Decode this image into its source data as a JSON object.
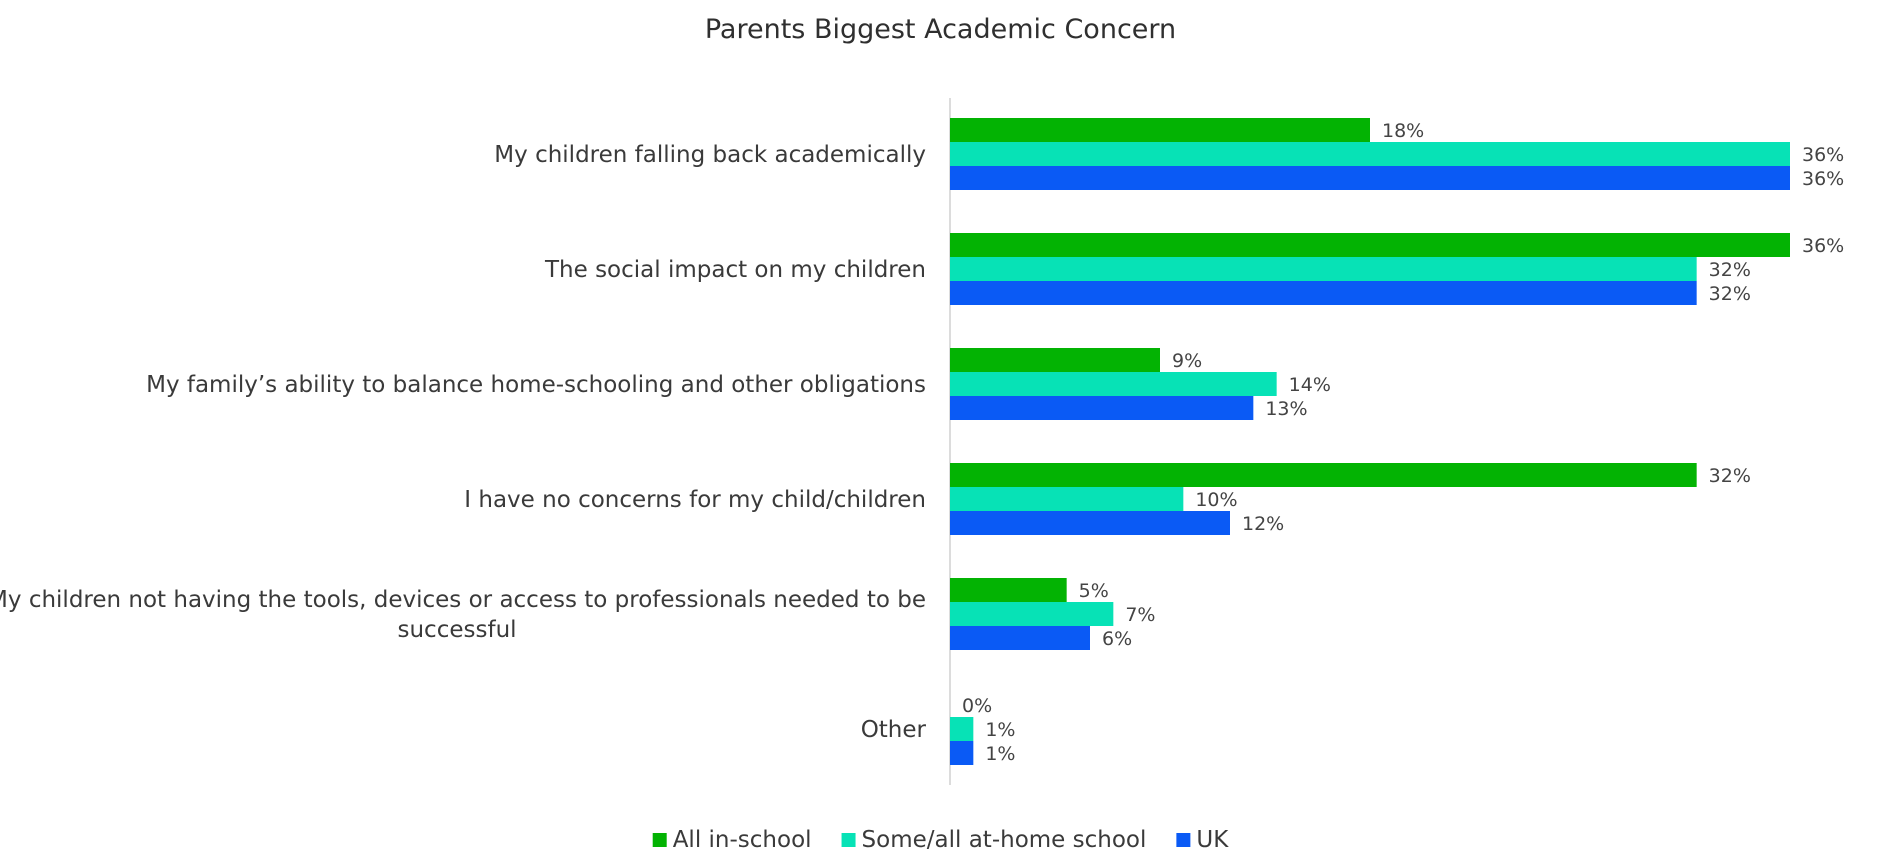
{
  "chart_data": {
    "type": "bar",
    "orientation": "horizontal",
    "title": "Parents Biggest Academic Concern",
    "categories": [
      [
        "My children falling back academically"
      ],
      [
        "The social impact on my children"
      ],
      [
        "My family’s ability to balance home-schooling and other obligations"
      ],
      [
        "I have no concerns for my child/children"
      ],
      [
        "My children not having the tools, devices or access to professionals needed to be",
        "successful"
      ],
      [
        "Other"
      ]
    ],
    "series": [
      {
        "name": "All in-school",
        "color": "#03b303",
        "values": [
          18,
          36,
          9,
          32,
          5,
          0
        ],
        "labels": [
          "18%",
          "36%",
          "9%",
          "32%",
          "5%",
          "0%"
        ]
      },
      {
        "name": "Some/all at-home school",
        "color": "#07e2b6",
        "values": [
          36,
          32,
          14,
          10,
          7,
          1
        ],
        "labels": [
          "36%",
          "32%",
          "14%",
          "10%",
          "7%",
          "1%"
        ]
      },
      {
        "name": "UK",
        "color": "#0a5af5",
        "values": [
          36,
          32,
          13,
          12,
          6,
          1
        ],
        "labels": [
          "36%",
          "32%",
          "13%",
          "12%",
          "6%",
          "1%"
        ]
      }
    ],
    "xlim": [
      0,
      36
    ],
    "grid": false,
    "legend": "bottom"
  }
}
